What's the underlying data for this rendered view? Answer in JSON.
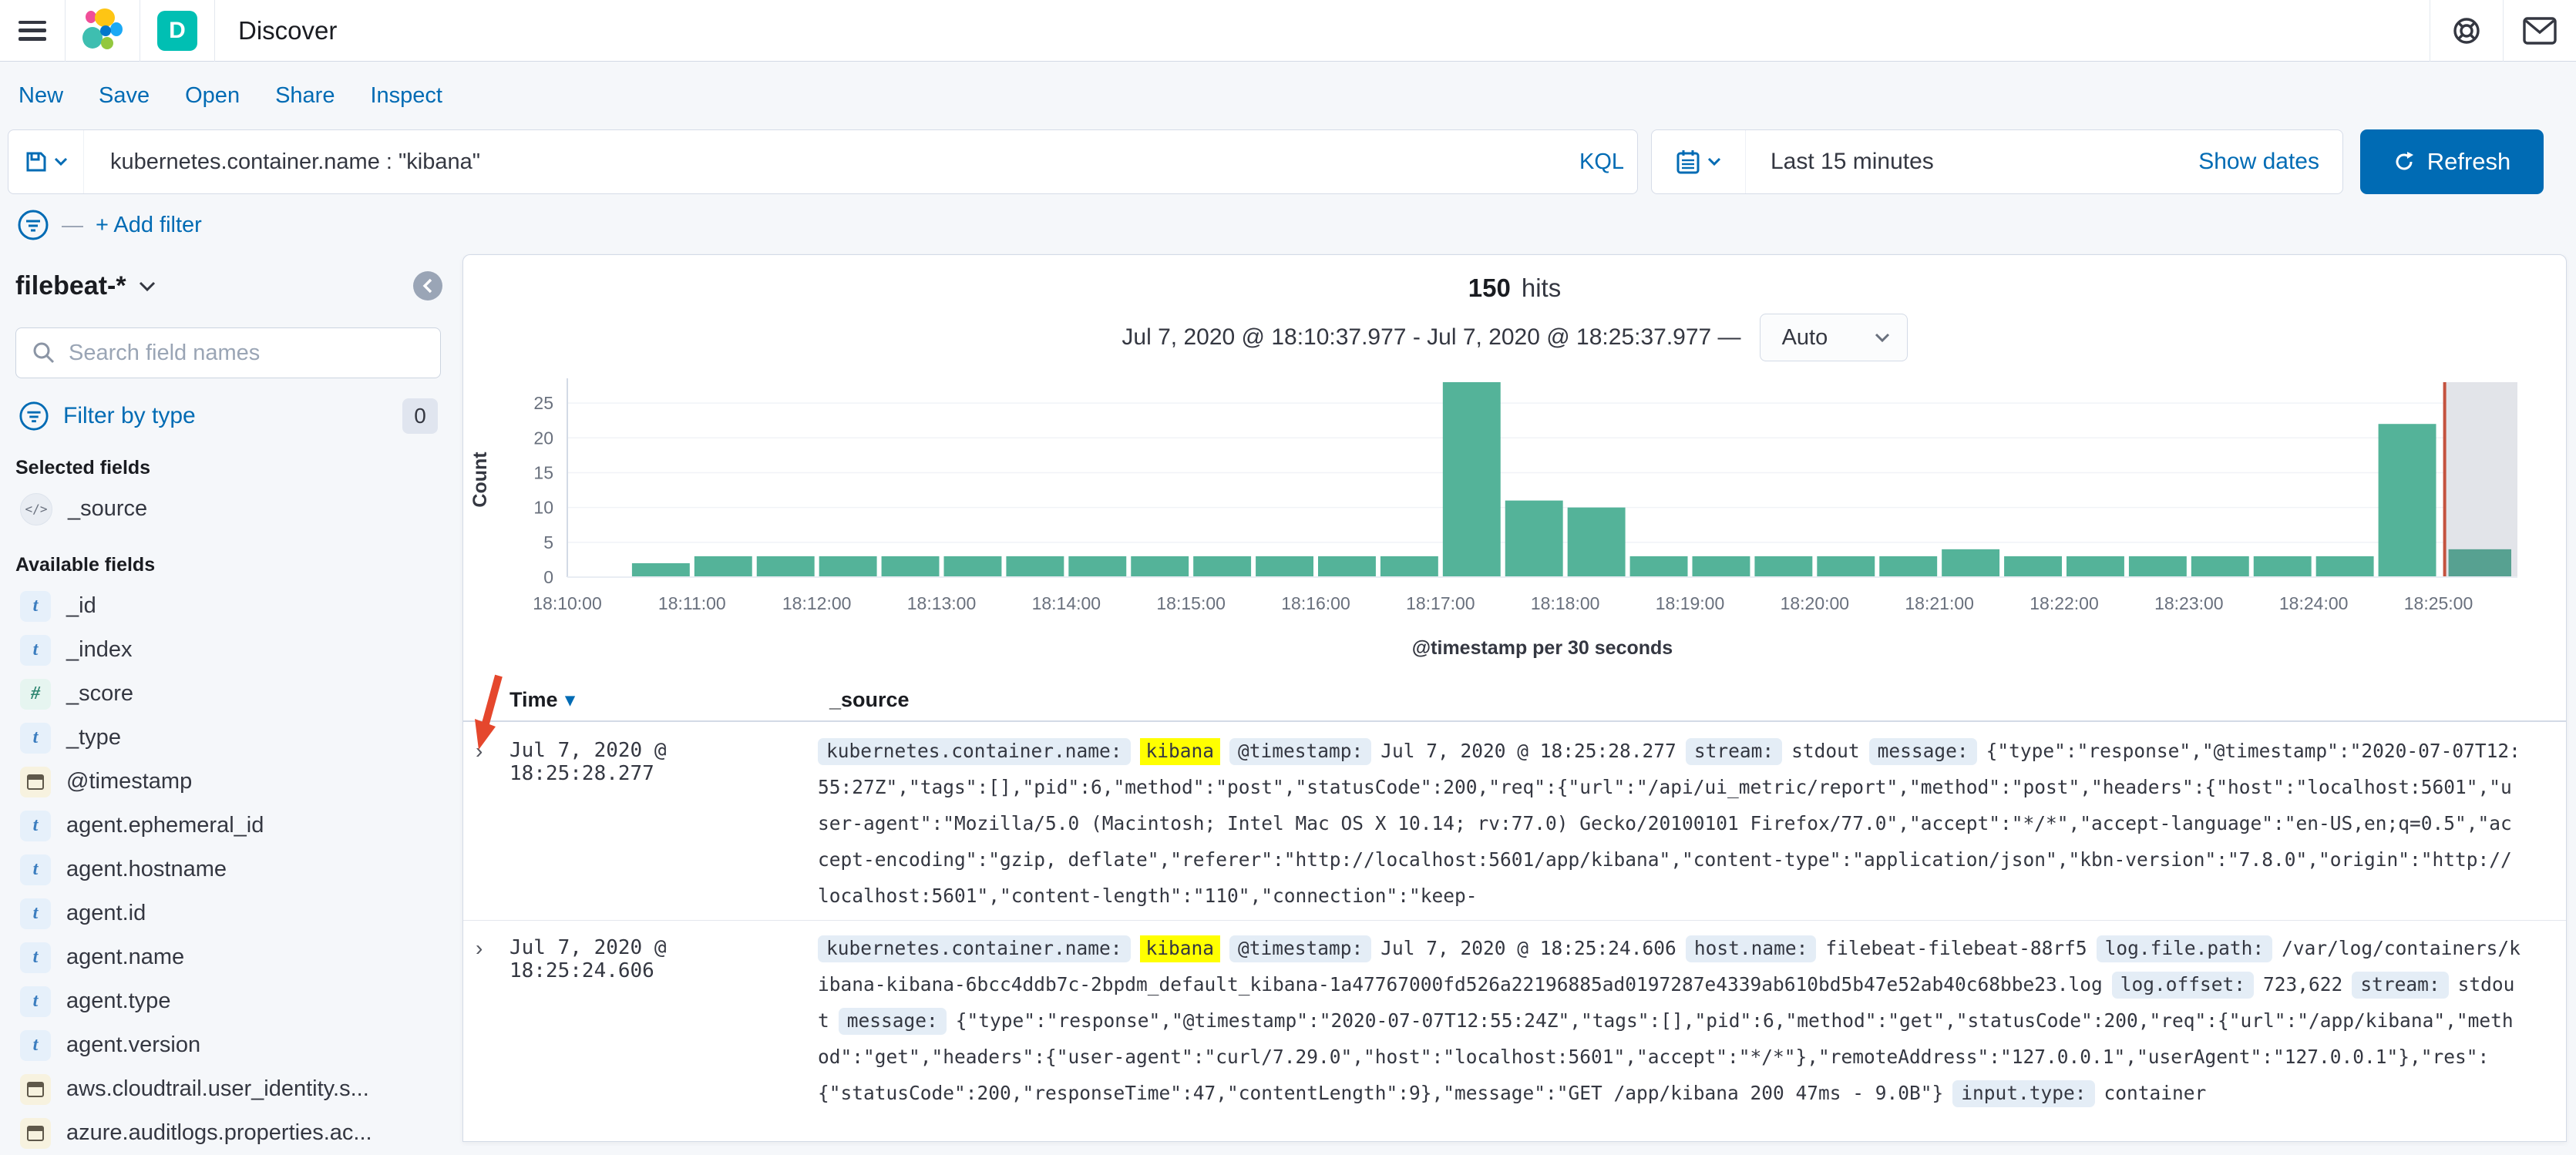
{
  "chrome": {
    "app_title": "Discover",
    "app_badge": "D",
    "icons": [
      "menu-icon",
      "elastic-logo",
      "help-icon",
      "newsfeed-icon"
    ]
  },
  "nav": {
    "items": [
      "New",
      "Save",
      "Open",
      "Share",
      "Inspect"
    ]
  },
  "query_bar": {
    "query_value": "kubernetes.container.name : \"kibana\"",
    "language": "KQL",
    "time_range": "Last 15 minutes",
    "show_dates_label": "Show dates",
    "refresh_label": "Refresh"
  },
  "filter_bar": {
    "add_filter_label": "+ Add filter"
  },
  "sidebar": {
    "index_pattern": "filebeat-*",
    "search_placeholder": "Search field names",
    "filter_by_type_label": "Filter by type",
    "filter_count": "0",
    "selected_heading": "Selected fields",
    "selected_fields": [
      {
        "name": "_source",
        "type": "source"
      }
    ],
    "available_heading": "Available fields",
    "available_fields": [
      {
        "name": "_id",
        "type": "t"
      },
      {
        "name": "_index",
        "type": "t"
      },
      {
        "name": "_score",
        "type": "#"
      },
      {
        "name": "_type",
        "type": "t"
      },
      {
        "name": "@timestamp",
        "type": "date"
      },
      {
        "name": "agent.ephemeral_id",
        "type": "t"
      },
      {
        "name": "agent.hostname",
        "type": "t"
      },
      {
        "name": "agent.id",
        "type": "t"
      },
      {
        "name": "agent.name",
        "type": "t"
      },
      {
        "name": "agent.type",
        "type": "t"
      },
      {
        "name": "agent.version",
        "type": "t"
      },
      {
        "name": "aws.cloudtrail.user_identity.s...",
        "type": "date"
      },
      {
        "name": "azure.auditlogs.properties.ac...",
        "type": "date"
      }
    ],
    "type_glyphs": {
      "t": "t",
      "#": "#",
      "source": "</>"
    }
  },
  "results_header": {
    "hits_count": "150",
    "hits_label": "hits",
    "range_label": "Jul 7, 2020 @ 18:10:37.977 - Jul 7, 2020 @ 18:25:37.977 —",
    "interval_value": "Auto"
  },
  "chart_data": {
    "type": "bar",
    "title": "150 hits",
    "xlabel": "@timestamp per 30 seconds",
    "ylabel": "Count",
    "ylim": [
      0,
      28
    ],
    "yticks": [
      0,
      5,
      10,
      15,
      20,
      25
    ],
    "x_tick_labels": [
      "18:10:00",
      "18:11:00",
      "18:12:00",
      "18:13:00",
      "18:14:00",
      "18:15:00",
      "18:16:00",
      "18:17:00",
      "18:18:00",
      "18:19:00",
      "18:20:00",
      "18:21:00",
      "18:22:00",
      "18:23:00",
      "18:24:00",
      "18:25:00"
    ],
    "x_domain_seconds": [
      0,
      938
    ],
    "tick_interval_seconds": 60,
    "bucket_seconds": 30,
    "buckets": [
      {
        "t": 30,
        "count": 2
      },
      {
        "t": 60,
        "count": 3
      },
      {
        "t": 90,
        "count": 3
      },
      {
        "t": 120,
        "count": 3
      },
      {
        "t": 150,
        "count": 3
      },
      {
        "t": 180,
        "count": 3
      },
      {
        "t": 210,
        "count": 3
      },
      {
        "t": 240,
        "count": 3
      },
      {
        "t": 270,
        "count": 3
      },
      {
        "t": 300,
        "count": 3
      },
      {
        "t": 330,
        "count": 3
      },
      {
        "t": 360,
        "count": 3
      },
      {
        "t": 390,
        "count": 3
      },
      {
        "t": 420,
        "count": 28
      },
      {
        "t": 450,
        "count": 11
      },
      {
        "t": 480,
        "count": 10
      },
      {
        "t": 510,
        "count": 3
      },
      {
        "t": 540,
        "count": 3
      },
      {
        "t": 570,
        "count": 3
      },
      {
        "t": 600,
        "count": 3
      },
      {
        "t": 630,
        "count": 3
      },
      {
        "t": 660,
        "count": 4
      },
      {
        "t": 690,
        "count": 3
      },
      {
        "t": 720,
        "count": 3
      },
      {
        "t": 750,
        "count": 3
      },
      {
        "t": 780,
        "count": 3
      },
      {
        "t": 810,
        "count": 3
      },
      {
        "t": 840,
        "count": 3
      },
      {
        "t": 870,
        "count": 22
      },
      {
        "t": 900,
        "count": 4,
        "incomplete": true
      }
    ],
    "current_time_marker_seconds": 903,
    "colors": {
      "bar": "#54b399",
      "incomplete_bar": "#57a191",
      "incomplete_region": "#e2e4e9",
      "time_marker": "#c4523e",
      "tick_text": "#69707d",
      "axis_text": "#343741",
      "axis_line": "#d3dae6",
      "gridline": "#f1f3f7"
    },
    "legend": "none",
    "grid": "subtle-horizontal"
  },
  "table": {
    "columns": [
      "Time",
      "_source"
    ],
    "sort_icon": "▾",
    "expand_icon": "›",
    "rows": [
      {
        "time": "Jul 7, 2020 @ 18:25:28.277",
        "segments": [
          {
            "k": "badge",
            "v": "kubernetes.container.name:"
          },
          {
            "k": "mark",
            "v": "kibana"
          },
          {
            "k": "badge",
            "v": "@timestamp:"
          },
          {
            "k": "plain",
            "v": "Jul 7, 2020 @ 18:25:28.277"
          },
          {
            "k": "badge",
            "v": "stream:"
          },
          {
            "k": "plain",
            "v": "stdout"
          },
          {
            "k": "badge",
            "v": "message:"
          },
          {
            "k": "plain",
            "v": "{\"type\":\"response\",\"@timestamp\":\"2020-07-07T12:55:27Z\",\"tags\":[],\"pid\":6,\"method\":\"post\",\"statusCode\":200,\"req\":{\"url\":\"/api/ui_metric/report\",\"method\":\"post\",\"headers\":{\"host\":\"localhost:5601\",\"user-agent\":\"Mozilla/5.0 (Macintosh; Intel Mac OS X 10.14; rv:77.0) Gecko/20100101 Firefox/77.0\",\"accept\":\"*/*\",\"accept-language\":\"en-US,en;q=0.5\",\"accept-encoding\":\"gzip, deflate\",\"referer\":\"http://localhost:5601/app/kibana\",\"content-type\":\"application/json\",\"kbn-version\":\"7.8.0\",\"origin\":\"http://localhost:5601\",\"content-length\":\"110\",\"connection\":\"keep-"
          }
        ]
      },
      {
        "time": "Jul 7, 2020 @ 18:25:24.606",
        "segments": [
          {
            "k": "badge",
            "v": "kubernetes.container.name:"
          },
          {
            "k": "mark",
            "v": "kibana"
          },
          {
            "k": "badge",
            "v": "@timestamp:"
          },
          {
            "k": "plain",
            "v": "Jul 7, 2020 @ 18:25:24.606"
          },
          {
            "k": "badge",
            "v": "host.name:"
          },
          {
            "k": "plain",
            "v": "filebeat-filebeat-88rf5"
          },
          {
            "k": "badge",
            "v": "log.file.path:"
          },
          {
            "k": "plain",
            "v": "/var/log/containers/kibana-kibana-6bcc4ddb7c-2bpdm_default_kibana-1a47767000fd526a22196885ad0197287e4339ab610bd5b47e52ab40c68bbe23.log"
          },
          {
            "k": "badge",
            "v": "log.offset:"
          },
          {
            "k": "plain",
            "v": "723,622"
          },
          {
            "k": "badge",
            "v": "stream:"
          },
          {
            "k": "plain",
            "v": "stdout"
          },
          {
            "k": "badge",
            "v": "message:"
          },
          {
            "k": "plain",
            "v": "{\"type\":\"response\",\"@timestamp\":\"2020-07-07T12:55:24Z\",\"tags\":[],\"pid\":6,\"method\":\"get\",\"statusCode\":200,\"req\":{\"url\":\"/app/kibana\",\"method\":\"get\",\"headers\":{\"user-agent\":\"curl/7.29.0\",\"host\":\"localhost:5601\",\"accept\":\"*/*\"},\"remoteAddress\":\"127.0.0.1\",\"userAgent\":\"127.0.0.1\"},\"res\":{\"statusCode\":200,\"responseTime\":47,\"contentLength\":9},\"message\":\"GET /app/kibana 200 47ms - 9.0B\"}"
          },
          {
            "k": "badge",
            "v": "input.type:"
          },
          {
            "k": "plain",
            "v": "container"
          }
        ]
      }
    ]
  },
  "annotation": {
    "red_arrow_present": true,
    "color": "#e5472d",
    "points_at": "first-row-expand-toggle"
  }
}
